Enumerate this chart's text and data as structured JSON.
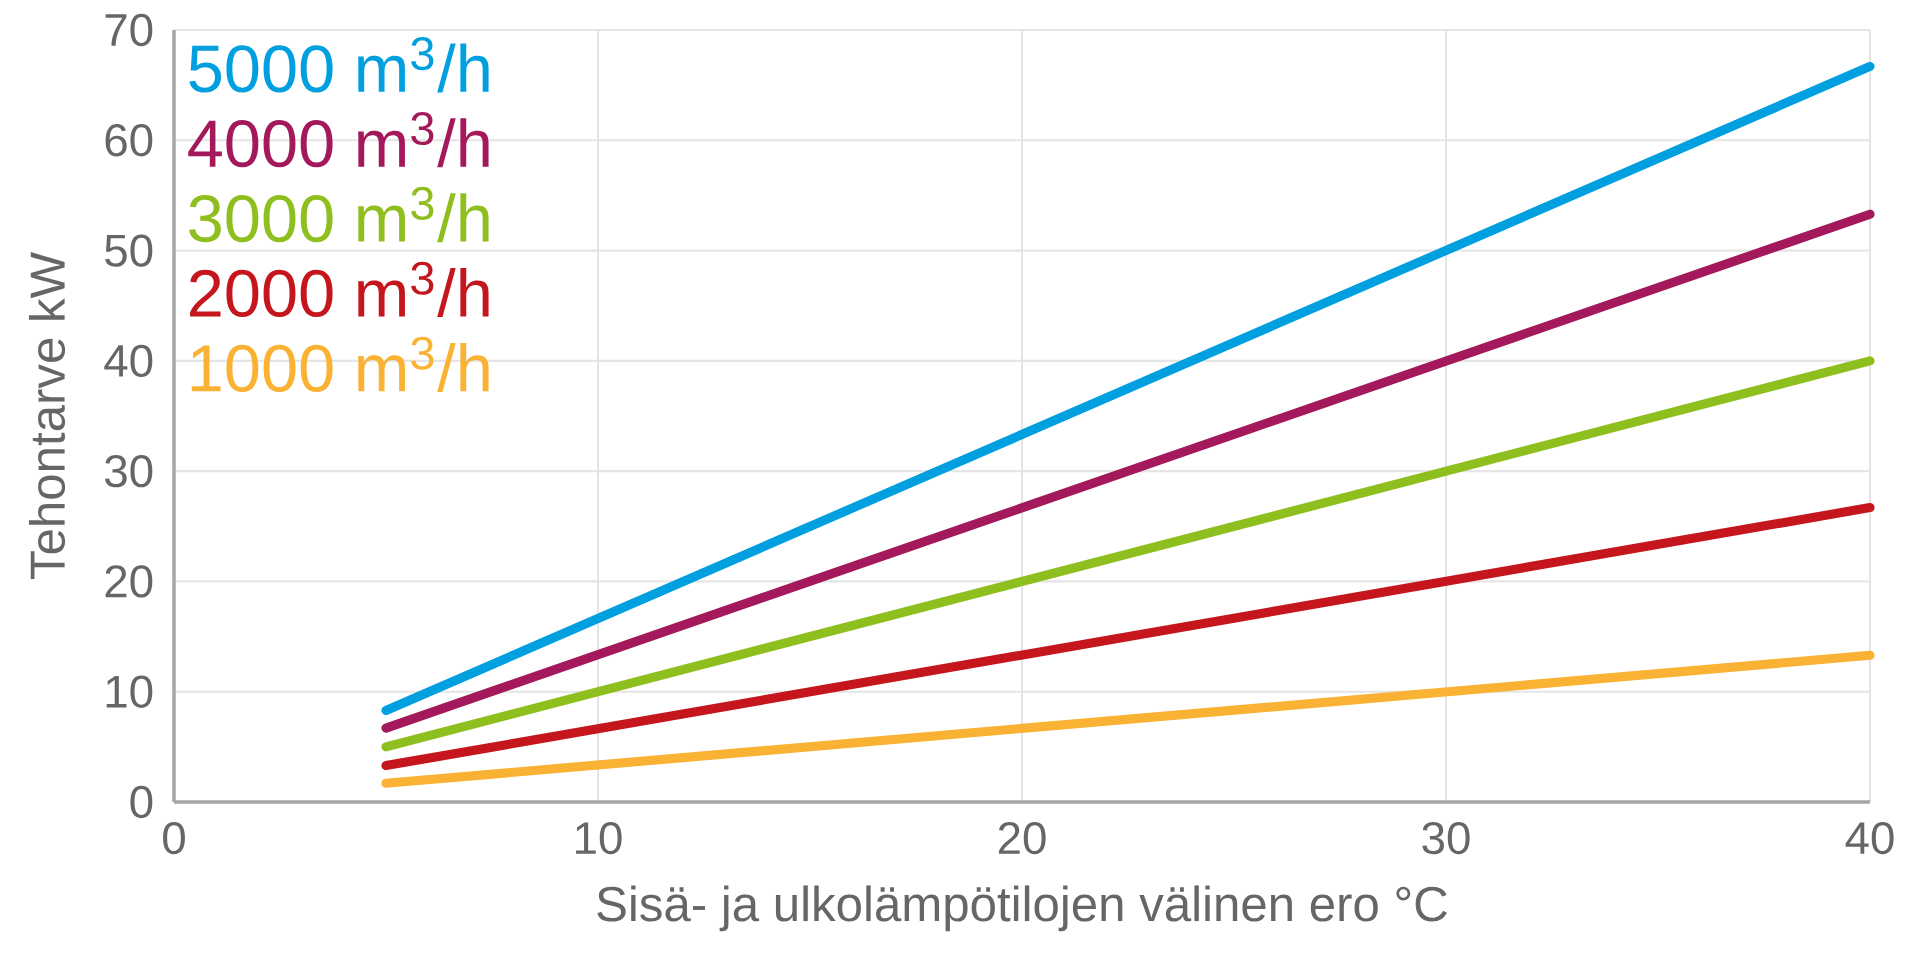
{
  "chart_data": {
    "type": "line",
    "xlabel": "Sisä- ja ulkolämpötilojen välinen ero °C",
    "ylabel": "Tehontarve kW",
    "x": [
      5,
      40
    ],
    "series": [
      {
        "name": "5000 m$^{3}$/h",
        "color": "#009fe0",
        "values": [
          8.3,
          66.7
        ]
      },
      {
        "name": "4000 m$^{3}$/h",
        "color": "#a3195b",
        "values": [
          6.7,
          53.3
        ]
      },
      {
        "name": "3000 m$^{3}$/h",
        "color": "#8fbf1f",
        "values": [
          5,
          40
        ]
      },
      {
        "name": "2000 m$^{3}$/h",
        "color": "#c4161c",
        "values": [
          3.3,
          26.7
        ]
      },
      {
        "name": "1000 m$^{3}$/h",
        "color": "#f9b233",
        "values": [
          1.7,
          13.3
        ]
      }
    ],
    "xlim": [
      0,
      40
    ],
    "ylim": [
      0,
      70
    ],
    "xticks": [
      0,
      10,
      20,
      30,
      40
    ],
    "yticks": [
      0,
      10,
      20,
      30,
      40,
      50,
      60,
      70
    ],
    "grid": true,
    "legend": "top left",
    "marker": "none",
    "line_style": "solid"
  }
}
